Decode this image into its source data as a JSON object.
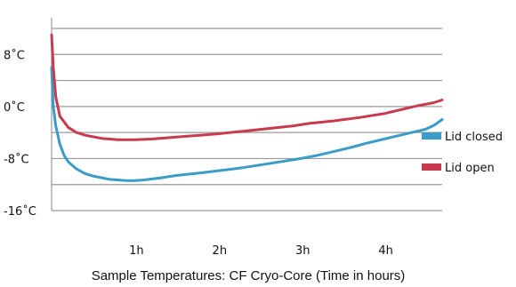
{
  "chart_data": {
    "type": "line",
    "title": "Sample Temperatures: CF Cryo-Core (Time in hours)",
    "xlabel": "",
    "ylabel": "",
    "xlim": [
      0,
      4.7
    ],
    "ylim": [
      -16,
      12
    ],
    "y_ticks": [
      {
        "value": 8,
        "label": "8˚C"
      },
      {
        "value": 0,
        "label": "0˚C"
      },
      {
        "value": -8,
        "label": "-8˚C"
      },
      {
        "value": -16,
        "label": "-16˚C"
      }
    ],
    "x_ticks": [
      {
        "value": 1,
        "label": "1h"
      },
      {
        "value": 2,
        "label": "2h"
      },
      {
        "value": 3,
        "label": "3h"
      },
      {
        "value": 4,
        "label": "4h"
      }
    ],
    "gridlines_y": [
      12,
      8,
      4,
      0,
      -4,
      -8,
      -12,
      -16
    ],
    "grid": true,
    "legend_position": "right",
    "series": [
      {
        "name": "Lid closed",
        "color": "#3a9cc8",
        "x": [
          0.0,
          0.02,
          0.05,
          0.1,
          0.15,
          0.2,
          0.3,
          0.4,
          0.5,
          0.7,
          0.9,
          1.0,
          1.1,
          1.3,
          1.5,
          1.8,
          2.0,
          2.3,
          2.6,
          2.9,
          3.0,
          3.2,
          3.4,
          3.6,
          3.8,
          4.0,
          4.2,
          4.4,
          4.5,
          4.6,
          4.7
        ],
        "y": [
          6.0,
          0.0,
          -3.0,
          -5.8,
          -7.5,
          -8.5,
          -9.6,
          -10.3,
          -10.7,
          -11.2,
          -11.4,
          -11.4,
          -11.3,
          -11.0,
          -10.6,
          -10.2,
          -9.9,
          -9.4,
          -8.8,
          -8.2,
          -8.0,
          -7.5,
          -6.9,
          -6.3,
          -5.6,
          -5.0,
          -4.4,
          -3.8,
          -3.5,
          -2.9,
          -2.0
        ]
      },
      {
        "name": "Lid open",
        "color": "#c83a4d",
        "x": [
          0.0,
          0.02,
          0.05,
          0.1,
          0.2,
          0.3,
          0.4,
          0.6,
          0.8,
          1.0,
          1.2,
          1.4,
          1.6,
          1.8,
          2.0,
          2.3,
          2.6,
          2.9,
          3.1,
          3.4,
          3.7,
          4.0,
          4.2,
          4.4,
          4.6,
          4.7
        ],
        "y": [
          11.0,
          6.0,
          1.5,
          -1.5,
          -3.2,
          -4.0,
          -4.4,
          -4.9,
          -5.1,
          -5.1,
          -5.0,
          -4.8,
          -4.6,
          -4.4,
          -4.2,
          -3.8,
          -3.4,
          -3.0,
          -2.6,
          -2.2,
          -1.7,
          -1.1,
          -0.5,
          0.1,
          0.6,
          1.0
        ]
      }
    ]
  }
}
